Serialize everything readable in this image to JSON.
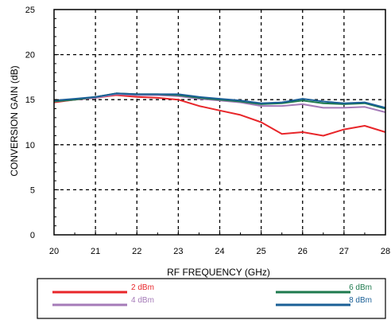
{
  "chart_data": {
    "type": "line",
    "title": "",
    "xlabel": "RF FREQUENCY (GHz)",
    "ylabel": "CONVERSION GAIN (dB)",
    "xlim": [
      20,
      28
    ],
    "ylim": [
      0,
      25
    ],
    "xticks": [
      20,
      21,
      22,
      23,
      24,
      25,
      26,
      27,
      28
    ],
    "yticks": [
      0,
      5,
      10,
      15,
      20,
      25
    ],
    "grid": true,
    "legend_position": "below",
    "series": [
      {
        "name": "2 dBm",
        "color": "#e8262a",
        "x": [
          20,
          20.5,
          21,
          21.5,
          22,
          22.5,
          23,
          23.5,
          24,
          24.5,
          25,
          25.5,
          26,
          26.5,
          27,
          27.5,
          28
        ],
        "y": [
          14.7,
          15.0,
          15.2,
          15.5,
          15.3,
          15.2,
          15.0,
          14.3,
          13.8,
          13.3,
          12.5,
          11.2,
          11.4,
          11.0,
          11.7,
          12.1,
          11.4
        ]
      },
      {
        "name": "4 dBm",
        "color": "#a57bb8",
        "x": [
          20,
          20.5,
          21,
          21.5,
          22,
          22.5,
          23,
          23.5,
          24,
          24.5,
          25,
          25.5,
          26,
          26.5,
          27,
          27.5,
          28
        ],
        "y": [
          14.8,
          15.0,
          15.2,
          15.6,
          15.5,
          15.5,
          15.4,
          15.1,
          14.9,
          14.7,
          14.3,
          14.3,
          14.5,
          14.1,
          14.1,
          14.2,
          13.6
        ]
      },
      {
        "name": "6 dBm",
        "color": "#1e7a4e",
        "x": [
          20,
          20.5,
          21,
          21.5,
          22,
          22.5,
          23,
          23.5,
          24,
          24.5,
          25,
          25.5,
          26,
          26.5,
          27,
          27.5,
          28
        ],
        "y": [
          14.8,
          15.0,
          15.3,
          15.7,
          15.6,
          15.6,
          15.5,
          15.2,
          15.0,
          14.8,
          14.5,
          14.6,
          14.9,
          14.6,
          14.5,
          14.6,
          14.0
        ]
      },
      {
        "name": "8 dBm",
        "color": "#1a5f96",
        "x": [
          20,
          20.5,
          21,
          21.5,
          22,
          22.5,
          23,
          23.5,
          24,
          24.5,
          25,
          25.5,
          26,
          26.5,
          27,
          27.5,
          28
        ],
        "y": [
          14.9,
          15.1,
          15.3,
          15.7,
          15.6,
          15.6,
          15.6,
          15.3,
          15.1,
          14.9,
          14.6,
          14.7,
          15.1,
          14.8,
          14.6,
          14.7,
          14.1
        ]
      }
    ]
  }
}
